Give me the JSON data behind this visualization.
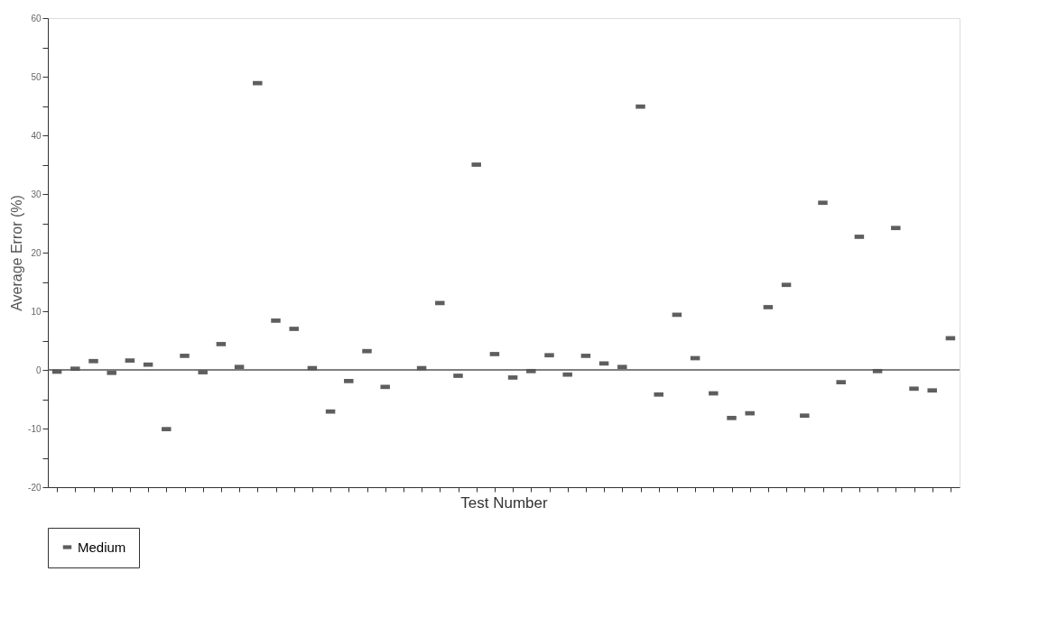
{
  "chart_data": {
    "type": "scatter",
    "xlabel": "Test Number",
    "ylabel": "Average Error (%)",
    "categories": [
      null,
      null,
      null,
      null,
      null,
      null,
      null,
      null,
      null,
      null,
      null,
      null,
      null,
      null,
      null,
      null,
      null,
      null,
      null,
      null,
      null,
      null,
      null,
      null,
      null,
      null,
      null,
      null,
      null,
      null,
      null,
      null,
      null,
      null,
      null,
      null,
      null,
      null,
      null,
      null,
      null,
      null,
      null,
      null,
      null,
      null,
      null,
      null,
      null,
      null
    ],
    "series": [
      {
        "name": "Medium",
        "color": "#1a1a1a",
        "values": [
          -0.3,
          0.2,
          1.5,
          -0.5,
          1.6,
          0.9,
          -10.1,
          2.4,
          -0.4,
          4.4,
          0.5,
          48.9,
          8.4,
          7.0,
          0.3,
          -7.1,
          -1.9,
          3.2,
          -2.9,
          null,
          0.3,
          11.4,
          -1.0,
          35.0,
          2.7,
          -1.3,
          -0.2,
          2.5,
          -0.8,
          2.4,
          1.1,
          0.5,
          44.9,
          -4.2,
          9.4,
          2.0,
          -4.0,
          -8.2,
          -7.4,
          10.7,
          14.5,
          -7.8,
          28.5,
          -2.1,
          22.7,
          -0.2,
          24.2,
          -3.2,
          -3.5,
          5.4
        ]
      }
    ],
    "ylim": [
      -20,
      60
    ],
    "yticks": [
      -20,
      {
        "value": -15,
        "label": null
      },
      -10,
      {
        "value": -5,
        "label": null
      },
      0,
      {
        "value": 5,
        "label": null
      },
      10,
      {
        "value": 15,
        "label": null
      },
      20,
      {
        "value": 25,
        "label": null
      },
      30,
      {
        "value": 35,
        "label": null
      },
      40,
      {
        "value": 45,
        "label": null
      },
      50,
      {
        "value": 55,
        "label": null
      },
      60
    ],
    "ref_lines": [
      {
        "axis": "y",
        "value": 0,
        "color": "#555555"
      }
    ],
    "marker": "square",
    "legend": "bottom left",
    "grid": false,
    "tick_labels": "y"
  }
}
